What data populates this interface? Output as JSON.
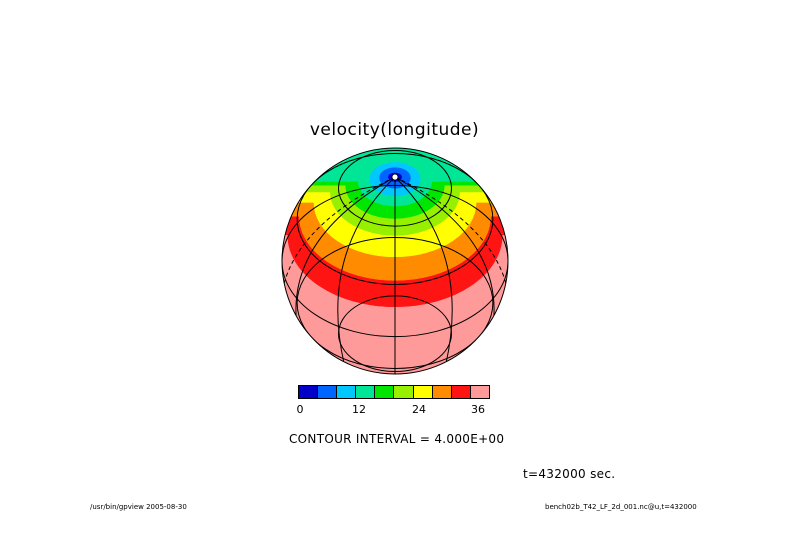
{
  "title": "velocity(longitude)",
  "colorbar": {
    "colors": [
      "#0000c8",
      "#0064ff",
      "#00c8ff",
      "#00e696",
      "#00e600",
      "#96f000",
      "#ffff00",
      "#ff8c00",
      "#ff1414",
      "#ff9a9a"
    ],
    "tick_labels": [
      "0",
      "12",
      "24",
      "36"
    ]
  },
  "contour_interval": "CONTOUR INTERVAL = 4.000E+00",
  "time_label": "t=432000 sec.",
  "footer": {
    "left": "/usr/bin/gpview  2005-08-30",
    "right": "bench02b_T42_LF_2d_001.nc@u,t=432000"
  },
  "globe": {
    "band_colors": [
      "#ff9a9a",
      "#ff1414",
      "#ff8c00",
      "#ffff00",
      "#96f000",
      "#00e600",
      "#00e696",
      "#00c8ff",
      "#0064ff",
      "#0000c8",
      "#ffffff"
    ],
    "outline_color": "#000000"
  }
}
